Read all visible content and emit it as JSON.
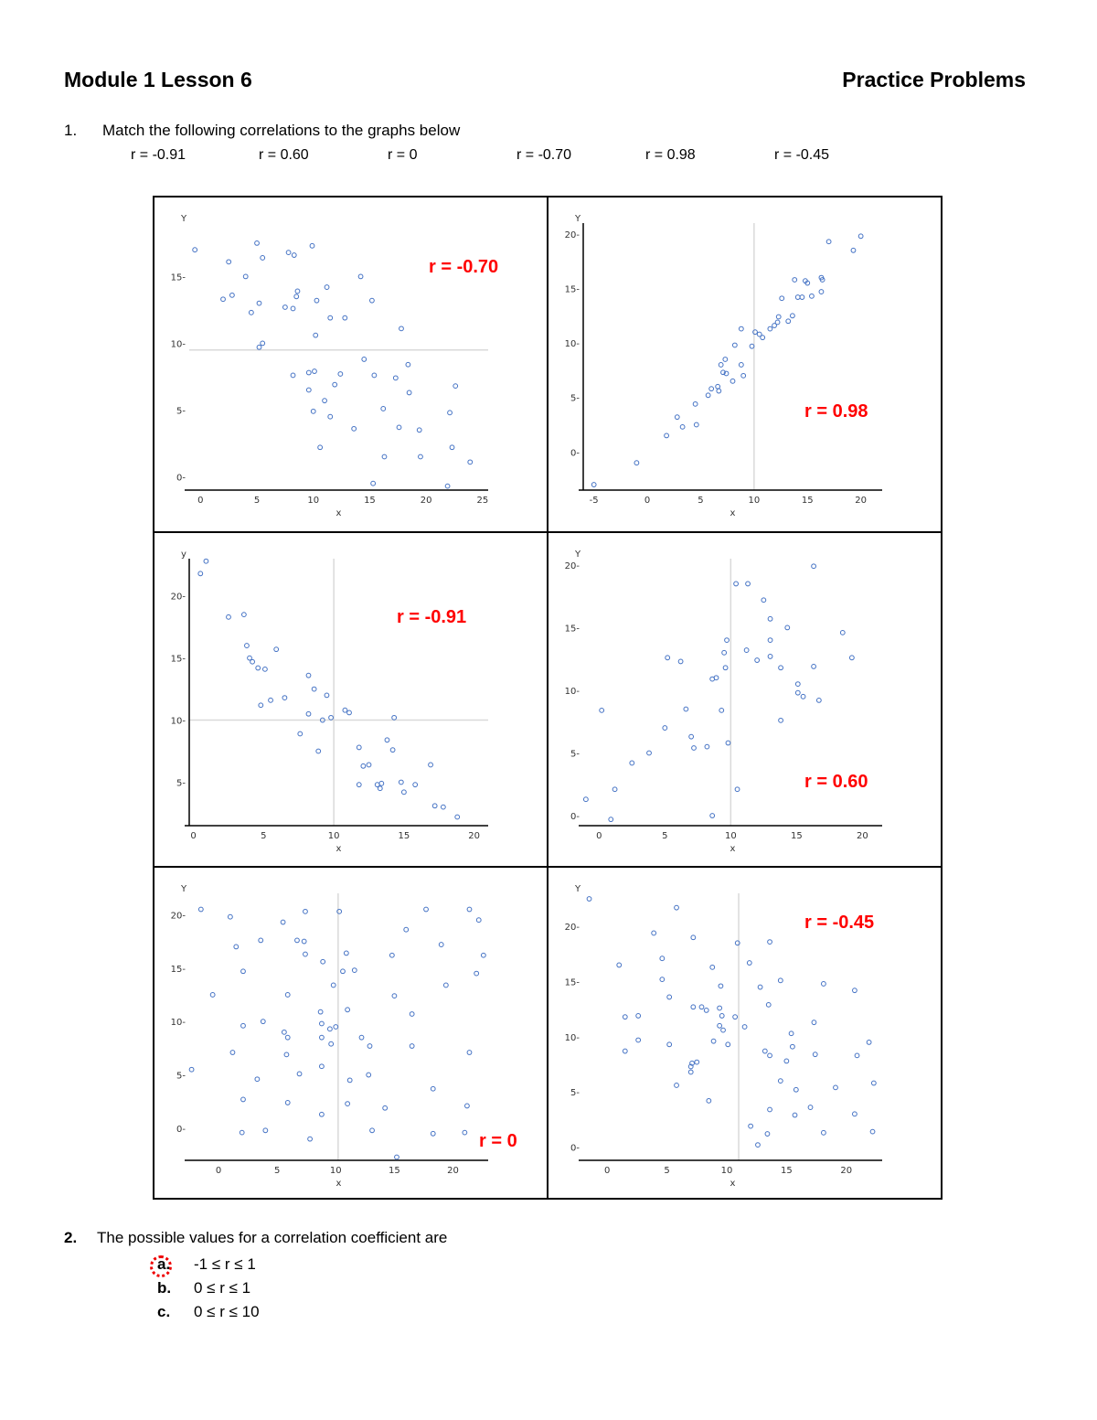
{
  "header": {
    "title": "Module 1 Lesson 6",
    "subtitle": "Practice Problems"
  },
  "question1": {
    "number": "1.",
    "prompt": "Match the following correlations to the graphs below",
    "choices": [
      "r = -0.91",
      "r = 0.60",
      "r = 0",
      "r = -0.70",
      "r = 0.98",
      "r = -0.45"
    ]
  },
  "question2": {
    "number": "2.",
    "prompt": "The possible values for a correlation coefficient are",
    "options": [
      {
        "letter": "a.",
        "text": "-1 ≤ r ≤ 1",
        "selected": true
      },
      {
        "letter": "b.",
        "text": "0 ≤ r ≤ 1",
        "selected": false
      },
      {
        "letter": "c.",
        "text": "0 ≤ r ≤ 10",
        "selected": false
      }
    ],
    "mark_color": "#e00000"
  },
  "colors": {
    "point": "#4472c4",
    "answer": "#ff0000",
    "refline": "#d9d9d9"
  },
  "chart_data": [
    {
      "type": "scatter",
      "position": "top-left",
      "answer": "r = -0.70",
      "xlabel": "x",
      "ylabel": "Y",
      "xticks": [
        0,
        5,
        10,
        15,
        20,
        25
      ],
      "yticks": [
        0,
        5,
        10,
        15
      ],
      "xlim": [
        -1,
        25.5
      ],
      "ylim": [
        -1,
        19
      ],
      "refline": {
        "axis": "y",
        "value": 9.5
      },
      "x": [
        -0.5,
        2,
        2.8,
        2.5,
        4,
        5,
        5.5,
        4.5,
        5.2,
        5.5,
        5.2,
        7.8,
        8.3,
        7.5,
        8.2,
        8.5,
        8.6,
        9.9,
        11.2,
        10.3,
        10.2,
        11.5,
        12.8,
        14.2,
        15.2,
        17.8,
        14.5,
        8.2,
        9.6,
        10.1,
        12.4,
        15.4,
        17.3,
        18.4,
        22.6,
        9.6,
        11.9,
        11.0,
        18.5,
        16.2,
        10.0,
        11.5,
        13.6,
        17.6,
        19.4,
        22.1,
        10.6,
        16.3,
        19.5,
        22.3,
        23.9,
        15.3,
        21.9
      ],
      "y": [
        17,
        13.3,
        13.6,
        16.1,
        15,
        17.5,
        16.4,
        12.3,
        13,
        10,
        9.7,
        16.8,
        16.6,
        12.7,
        12.6,
        13.5,
        13.9,
        17.3,
        14.2,
        13.2,
        10.6,
        11.9,
        11.9,
        15,
        13.2,
        11.1,
        8.8,
        7.6,
        7.8,
        7.9,
        7.7,
        7.6,
        7.4,
        8.4,
        6.8,
        6.5,
        6.9,
        5.7,
        6.3,
        5.1,
        4.9,
        4.5,
        3.6,
        3.7,
        3.5,
        4.8,
        2.2,
        1.5,
        1.5,
        2.2,
        1.1,
        -0.5,
        -0.7
      ]
    },
    {
      "type": "scatter",
      "position": "top-right",
      "answer": "r = 0.98",
      "xlabel": "x",
      "ylabel": "Y",
      "xticks": [
        -5,
        0,
        5,
        10,
        15,
        20
      ],
      "yticks": [
        0,
        5,
        10,
        15,
        20
      ],
      "xlim": [
        -6,
        22
      ],
      "ylim": [
        -3.5,
        21
      ],
      "refline": {
        "axis": "x",
        "value": 10
      },
      "x": [
        -5,
        -1,
        1.8,
        2.8,
        3.3,
        4.5,
        4.6,
        5.7,
        6,
        6.6,
        6.7,
        6.9,
        7.1,
        7.3,
        7.4,
        8,
        8.2,
        8.8,
        8.8,
        9,
        9.8,
        10.1,
        10.5,
        10.8,
        11.5,
        11.9,
        12.2,
        12.3,
        12.6,
        13.2,
        13.6,
        13.8,
        14.1,
        14.5,
        14.8,
        15,
        15.4,
        16.3,
        16.4,
        16.3,
        17,
        19.3,
        20
      ],
      "y": [
        -3,
        -1,
        1.5,
        3.2,
        2.3,
        4.4,
        2.5,
        5.2,
        5.8,
        6,
        5.6,
        8,
        7.3,
        8.5,
        7.2,
        6.5,
        9.8,
        8,
        11.3,
        7,
        9.7,
        11,
        10.8,
        10.5,
        11.3,
        11.6,
        11.9,
        12.4,
        14.1,
        12,
        12.5,
        15.8,
        14.2,
        14.2,
        15.7,
        15.5,
        14.3,
        16,
        15.8,
        14.7,
        19.3,
        18.5,
        19.8
      ]
    },
    {
      "type": "scatter",
      "position": "middle-left",
      "answer": "r = -0.91",
      "xlabel": "x",
      "ylabel": "y",
      "xticks": [
        0,
        5,
        10,
        15,
        20
      ],
      "yticks": [
        5,
        10,
        15,
        20
      ],
      "xlim": [
        -0.3,
        21
      ],
      "ylim": [
        1.5,
        23
      ],
      "refline": {
        "axis": "both",
        "x": 10,
        "y": 10
      },
      "x": [
        0.5,
        0.9,
        2.5,
        3.6,
        3.8,
        4,
        4.2,
        4.6,
        5.1,
        5.9,
        4.8,
        5.5,
        6.5,
        8.2,
        8.6,
        9.5,
        8.2,
        9.2,
        9.8,
        10.8,
        11.1,
        7.6,
        8.9,
        11.8,
        12.1,
        13.4,
        13.8,
        14.2,
        14.3,
        12.5,
        11.8,
        13.1,
        13.3,
        15,
        14.8,
        15.8,
        17.2,
        17.8,
        18.8,
        16.9
      ],
      "y": [
        21.8,
        22.8,
        18.3,
        18.5,
        16,
        15,
        14.7,
        14.2,
        14.1,
        15.7,
        11.2,
        11.6,
        11.8,
        13.6,
        12.5,
        12,
        10.5,
        10,
        10.2,
        10.8,
        10.6,
        8.9,
        7.5,
        7.8,
        6.3,
        4.9,
        8.4,
        7.6,
        10.2,
        6.4,
        4.8,
        4.8,
        4.5,
        4.2,
        5,
        4.8,
        3.1,
        3,
        2.2,
        6.4
      ]
    },
    {
      "type": "scatter",
      "position": "middle-right",
      "answer": "r = 0.60",
      "xlabel": "x",
      "ylabel": "Y",
      "xticks": [
        0,
        5,
        10,
        15,
        20
      ],
      "yticks": [
        0,
        5,
        10,
        15,
        20
      ],
      "xlim": [
        -1.2,
        21.5
      ],
      "ylim": [
        -0.8,
        20.5
      ],
      "refline": {
        "axis": "x",
        "value": 10
      },
      "x": [
        -1,
        0.2,
        0.9,
        1.2,
        2.5,
        3.8,
        5,
        5.2,
        6.2,
        6.6,
        7,
        7.2,
        8.2,
        8.6,
        8.9,
        9.3,
        9.5,
        9.6,
        9.7,
        9.8,
        10.4,
        10.5,
        11.3,
        11.2,
        12,
        12.5,
        13,
        13,
        13,
        13.8,
        13.8,
        14.3,
        15.1,
        15.1,
        15.5,
        16.3,
        16.3,
        16.7,
        18.5,
        19.2,
        8.6
      ],
      "y": [
        1.3,
        8.4,
        -0.3,
        2.1,
        4.2,
        5,
        7,
        12.6,
        12.3,
        8.5,
        6.3,
        5.4,
        5.5,
        10.9,
        11,
        8.4,
        13,
        11.8,
        14,
        5.8,
        18.5,
        2.1,
        18.5,
        13.2,
        12.4,
        17.2,
        15.7,
        14,
        12.7,
        11.8,
        7.6,
        15,
        10.5,
        9.8,
        9.5,
        19.9,
        11.9,
        9.2,
        14.6,
        12.6,
        0
      ]
    },
    {
      "type": "scatter",
      "position": "bottom-left",
      "answer": "r = 0",
      "xlabel": "x",
      "ylabel": "Y",
      "xticks": [
        0,
        5,
        10,
        15,
        20
      ],
      "yticks": [
        0,
        5,
        10,
        15,
        20
      ],
      "xlim": [
        -2.5,
        23
      ],
      "ylim": [
        -3,
        22
      ],
      "refline": {
        "axis": "x",
        "value": 10.2
      },
      "x": [
        -1.5,
        1,
        5.5,
        7.4,
        10.3,
        17.7,
        21.4,
        22.2,
        6.7,
        3.6,
        7.3,
        16,
        19,
        1.5,
        7.4,
        10.9,
        14.8,
        22.6,
        8.9,
        2.1,
        10.6,
        11.6,
        22,
        9.8,
        19.4,
        -0.5,
        5.9,
        15,
        11,
        8.7,
        16.5,
        3.8,
        2.1,
        8.8,
        10,
        9.5,
        5.6,
        5.9,
        8.8,
        12.2,
        9.6,
        12.9,
        16.5,
        1.2,
        21.4,
        5.8,
        -2.3,
        8.8,
        6.9,
        12.8,
        3.3,
        11.2,
        18.3,
        2.1,
        5.9,
        11,
        14.2,
        21.2,
        8.8,
        2,
        4,
        13.1,
        7.8,
        15.2,
        18.3,
        21
      ],
      "y": [
        20.5,
        19.8,
        19.3,
        20.3,
        20.3,
        20.5,
        20.5,
        19.5,
        17.6,
        17.6,
        17.5,
        18.6,
        17.2,
        17,
        16.3,
        16.4,
        16.2,
        16.2,
        15.6,
        14.7,
        14.7,
        14.8,
        14.5,
        13.4,
        13.4,
        12.5,
        12.5,
        12.4,
        11.1,
        10.9,
        10.7,
        10,
        9.6,
        9.8,
        9.5,
        9.3,
        9,
        8.5,
        8.5,
        8.5,
        7.9,
        7.7,
        7.7,
        7.1,
        7.1,
        6.9,
        5.5,
        5.8,
        5.1,
        5,
        4.6,
        4.5,
        3.7,
        2.7,
        2.4,
        2.3,
        1.9,
        2.1,
        1.3,
        -0.4,
        -0.2,
        -0.2,
        -1,
        -2.7,
        -0.5,
        -0.4
      ]
    },
    {
      "type": "scatter",
      "position": "bottom-right",
      "answer": "r = -0.45",
      "xlabel": "x",
      "ylabel": "Y",
      "xticks": [
        0,
        5,
        10,
        15,
        20
      ],
      "yticks": [
        0,
        5,
        10,
        15,
        20
      ],
      "xlim": [
        -2,
        23
      ],
      "ylim": [
        -1.2,
        23
      ],
      "refline": {
        "axis": "x",
        "value": 11
      },
      "x": [
        -1.5,
        5.8,
        3.9,
        7.2,
        10.9,
        13.6,
        4.6,
        1,
        8.8,
        11.9,
        4.6,
        14.5,
        9.5,
        12.8,
        18.1,
        20.7,
        5.2,
        13.5,
        7.2,
        7.9,
        8.3,
        9.4,
        9.6,
        10.7,
        1.5,
        2.6,
        17.3,
        9.4,
        9.7,
        11.5,
        15.4,
        2.6,
        5.2,
        8.9,
        10.1,
        21.9,
        1.5,
        13.2,
        13.6,
        15.5,
        17.4,
        20.9,
        7,
        7,
        7.5,
        14.5,
        5.8,
        15.8,
        19.1,
        22.3,
        8.5,
        13.6,
        17,
        15.7,
        20.7,
        12,
        13.4,
        18.1,
        22.2,
        12.6,
        15,
        7.1
      ],
      "y": [
        22.5,
        21.7,
        19.4,
        19,
        18.5,
        18.6,
        17.1,
        16.5,
        16.3,
        16.7,
        15.2,
        15.1,
        14.6,
        14.5,
        14.8,
        14.2,
        13.6,
        12.9,
        12.7,
        12.7,
        12.4,
        12.6,
        11.9,
        11.8,
        11.8,
        11.9,
        11.3,
        11,
        10.6,
        10.9,
        10.3,
        9.7,
        9.3,
        9.6,
        9.3,
        9.5,
        8.7,
        8.7,
        8.3,
        9.1,
        8.4,
        8.3,
        7.3,
        6.8,
        7.7,
        6,
        5.6,
        5.2,
        5.4,
        5.8,
        4.2,
        3.4,
        3.6,
        2.9,
        3,
        1.9,
        1.2,
        1.3,
        1.4,
        0.2,
        7.8,
        7.6
      ]
    }
  ]
}
